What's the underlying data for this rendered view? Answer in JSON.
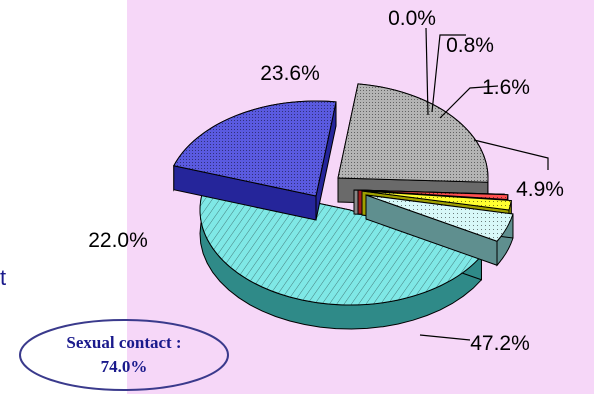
{
  "chart_data": {
    "type": "pie",
    "style": "3d-exploded",
    "slices": [
      {
        "label": "47.2%",
        "value": 47.2,
        "color": "#7fe8e6",
        "side": "#2f8a88",
        "pattern": "diagonal-hatch"
      },
      {
        "label": "22.0%",
        "value": 22.0,
        "color": "#5a5ae0",
        "side": "#25259a",
        "pattern": "fine-dots"
      },
      {
        "label": "23.6%",
        "value": 23.6,
        "color": "#b4b4b4",
        "side": "#6a6a6a",
        "pattern": "fine-dots"
      },
      {
        "label": "0.0%",
        "value": 0.0,
        "color": "#ffffff",
        "side": "#888888",
        "pattern": "none"
      },
      {
        "label": "0.8%",
        "value": 0.8,
        "color": "#ff5050",
        "side": "#a02020",
        "pattern": "dots"
      },
      {
        "label": "1.6%",
        "value": 1.6,
        "color": "#ffff30",
        "side": "#a0a000",
        "pattern": "dots"
      },
      {
        "label": "4.9%",
        "value": 4.9,
        "color": "#d8f8f8",
        "side": "#5f8f8f",
        "pattern": "dots"
      }
    ]
  },
  "callout": {
    "line1": "Sexual contact :",
    "line2": "74.0%",
    "border_color": "#3a3a8c"
  },
  "stray_text": "t",
  "colors": {
    "background": "#f6d7f8",
    "text": "#000000",
    "callout_text": "#1a1a8c"
  }
}
